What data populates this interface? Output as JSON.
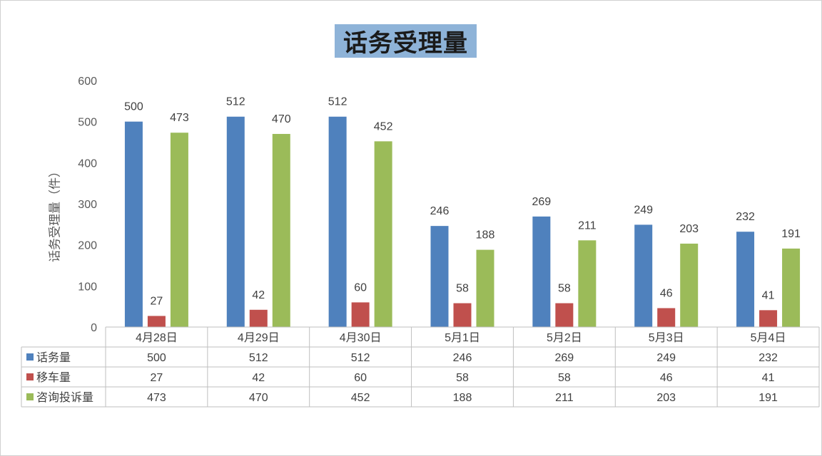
{
  "chart_data": {
    "type": "bar",
    "title": "话务受理量",
    "ylabel": "话务受理量（件）",
    "xlabel": "",
    "ylim": [
      0,
      600
    ],
    "yticks": [
      0,
      100,
      200,
      300,
      400,
      500,
      600
    ],
    "grid": false,
    "legend": "data-table",
    "categories": [
      "4月28日",
      "4月29日",
      "4月30日",
      "5月1日",
      "5月2日",
      "5月3日",
      "5月4日"
    ],
    "series": [
      {
        "name": "话务量",
        "color": "#4f81bd",
        "values": [
          500,
          512,
          512,
          246,
          269,
          249,
          232
        ]
      },
      {
        "name": "移车量",
        "color": "#c0504d",
        "values": [
          27,
          42,
          60,
          58,
          58,
          46,
          41
        ]
      },
      {
        "name": "咨询投诉量",
        "color": "#9bbb59",
        "values": [
          473,
          470,
          452,
          188,
          211,
          203,
          191
        ]
      }
    ]
  }
}
